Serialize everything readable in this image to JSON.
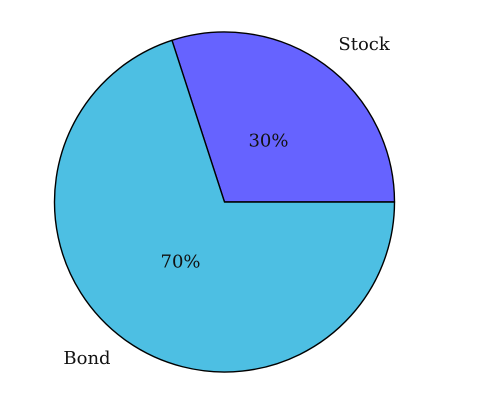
{
  "chart_data": {
    "type": "pie",
    "start_angle_deg": 0,
    "direction": "counterclockwise",
    "slices": [
      {
        "label": "Stock",
        "value": 30,
        "percent_label": "30%",
        "color": "#6663ff"
      },
      {
        "label": "Bond",
        "value": 70,
        "percent_label": "70%",
        "color": "#4dbfe3"
      }
    ],
    "outline_color": "#000000"
  }
}
